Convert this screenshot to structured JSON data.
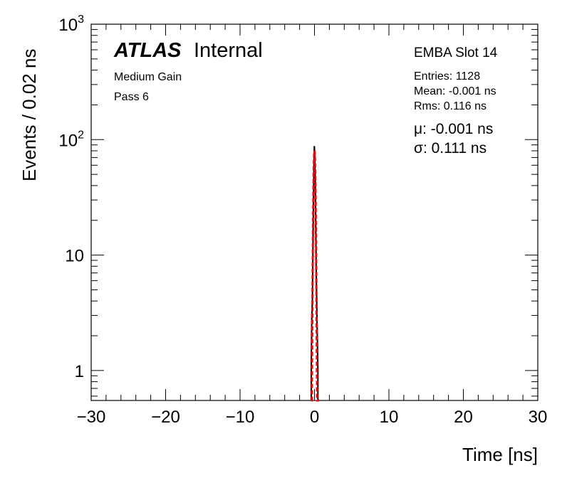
{
  "chart_data": {
    "type": "histogram",
    "xlabel": "Time [ns]",
    "ylabel": "Events / 0.02 ns",
    "xlim": [
      -30,
      30
    ],
    "ylim": [
      0.55,
      1000
    ],
    "yscale": "log",
    "x_ticks": [
      -30,
      -20,
      -10,
      0,
      10,
      20,
      30
    ],
    "x_tick_labels": [
      "−30",
      "−20",
      "−10",
      "0",
      "10",
      "20",
      "30"
    ],
    "y_ticks": [
      {
        "value": 1,
        "label": "1"
      },
      {
        "value": 10,
        "label": "10"
      },
      {
        "value": 100,
        "base": "10",
        "exp": "2"
      },
      {
        "value": 1000,
        "base": "10",
        "exp": "3"
      }
    ],
    "grid": false,
    "series": [
      {
        "kind": "histogram",
        "color": "#000000",
        "points": [
          {
            "x": -0.44,
            "y": 1
          },
          {
            "x": -0.36,
            "y": 3
          },
          {
            "x": -0.28,
            "y": 4
          },
          {
            "x": -0.2,
            "y": 12
          },
          {
            "x": -0.14,
            "y": 28
          },
          {
            "x": -0.08,
            "y": 55
          },
          {
            "x": -0.02,
            "y": 88
          },
          {
            "x": 0.04,
            "y": 72
          },
          {
            "x": 0.1,
            "y": 45
          },
          {
            "x": 0.16,
            "y": 20
          },
          {
            "x": 0.22,
            "y": 8
          },
          {
            "x": 0.3,
            "y": 4
          },
          {
            "x": 0.38,
            "y": 2
          },
          {
            "x": 0.46,
            "y": 1
          }
        ]
      },
      {
        "kind": "fit",
        "color": "#ff0000",
        "mu": -0.001,
        "sigma": 0.111,
        "amplitude": 80,
        "x_range": [
          -0.42,
          0.62
        ]
      }
    ]
  },
  "labels": {
    "atlas": "ATLAS",
    "internal": "Internal",
    "gain": "Medium Gain",
    "pass": "Pass 6",
    "module": "EMBA Slot 14",
    "entries": "Entries: 1128",
    "mean": "Mean: -0.001 ns",
    "rms": "Rms: 0.116 ns",
    "mu": "μ: -0.001 ns",
    "sigma": "σ: 0.111 ns"
  }
}
